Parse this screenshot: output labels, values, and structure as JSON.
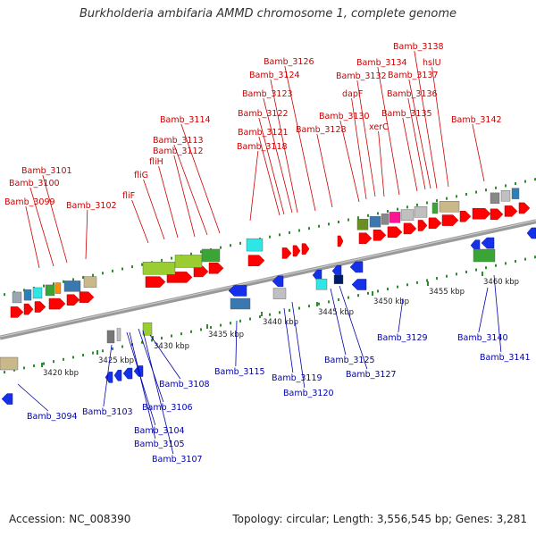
{
  "title": "Burkholderia ambifaria AMMD chromosome 1, complete genome",
  "footer": {
    "accession": "Accession: NC_008390",
    "topology": "Topology: circular; Length: 3,556,545 bp; Genes: 3,281"
  },
  "colors": {
    "forward_label": "#cc0000",
    "reverse_label": "#0000aa",
    "forward_gene": "#ff0000",
    "reverse_gene": "#1530e8",
    "backbone": "#999999",
    "tick_dots": "#2e8b2e"
  },
  "scale_labels": [
    "3420 kbp",
    "3425 kbp",
    "3430 kbp",
    "3435 kbp",
    "3440 kbp",
    "3445 kbp",
    "3450 kbp",
    "3455 kbp",
    "3460 kbp"
  ],
  "forward_labels": [
    "Bamb_3099",
    "Bamb_3100",
    "Bamb_3101",
    "Bamb_3102",
    "fliF",
    "fliG",
    "fliH",
    "Bamb_3112",
    "Bamb_3113",
    "Bamb_3114",
    "Bamb_3118",
    "Bamb_3121",
    "Bamb_3122",
    "Bamb_3123",
    "Bamb_3124",
    "Bamb_3126",
    "Bamb_3128",
    "Bamb_3130",
    "dapF",
    "xerC",
    "Bamb_3132",
    "Bamb_3134",
    "Bamb_3135",
    "Bamb_3136",
    "Bamb_3137",
    "Bamb_3138",
    "hslU",
    "Bamb_3142"
  ],
  "reverse_labels": [
    "Bamb_3094",
    "Bamb_3103",
    "Bamb_3104",
    "Bamb_3105",
    "Bamb_3106",
    "Bamb_3107",
    "Bamb_3108",
    "Bamb_3115",
    "Bamb_3119",
    "Bamb_3120",
    "Bamb_3125",
    "Bamb_3127",
    "Bamb_3129",
    "Bamb_3140",
    "Bamb_3141"
  ]
}
